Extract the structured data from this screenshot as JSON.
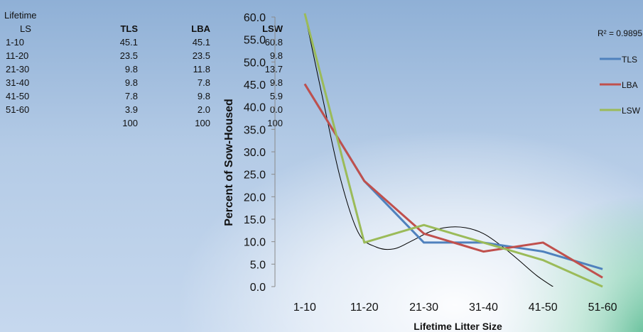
{
  "table": {
    "title": "Lifetime",
    "headers": [
      "LS",
      "TLS",
      "LBA",
      "LSW"
    ],
    "rows": [
      [
        "1-10",
        "45.1",
        "45.1",
        "60.8"
      ],
      [
        "11-20",
        "23.5",
        "23.5",
        "9.8"
      ],
      [
        "21-30",
        "9.8",
        "11.8",
        "13.7"
      ],
      [
        "31-40",
        "9.8",
        "7.8",
        "9.8"
      ],
      [
        "41-50",
        "7.8",
        "9.8",
        "5.9"
      ],
      [
        "51-60",
        "3.9",
        "2.0",
        "0.0"
      ]
    ],
    "totals": [
      "",
      "100",
      "100",
      "100"
    ]
  },
  "chart_data": {
    "type": "line",
    "categories": [
      "1-10",
      "11-20",
      "21-30",
      "31-40",
      "41-50",
      "51-60"
    ],
    "series": [
      {
        "name": "TLS",
        "values": [
          45.1,
          23.5,
          9.8,
          9.8,
          7.8,
          3.9
        ],
        "color": "#4f81bd"
      },
      {
        "name": "LBA",
        "values": [
          45.1,
          23.5,
          11.8,
          7.8,
          9.8,
          2.0
        ],
        "color": "#c0504d"
      },
      {
        "name": "LSW",
        "values": [
          60.8,
          9.8,
          13.7,
          9.8,
          5.9,
          0.0
        ],
        "color": "#9bbb59"
      }
    ],
    "trendline": {
      "type": "polynomial",
      "r2_label": "R² = 0.9895",
      "color": "#000000",
      "points": [
        [
          1,
          60.8
        ],
        [
          1.3,
          42
        ],
        [
          1.6,
          24
        ],
        [
          1.9,
          12
        ],
        [
          2.2,
          8.8
        ],
        [
          2.5,
          8.4
        ],
        [
          2.8,
          10.2
        ],
        [
          3.1,
          12.2
        ],
        [
          3.4,
          13.2
        ],
        [
          3.7,
          13.1
        ],
        [
          4.0,
          11.8
        ],
        [
          4.3,
          9.1
        ],
        [
          4.6,
          5.8
        ],
        [
          4.9,
          2.4
        ],
        [
          5.2,
          -0.3
        ]
      ]
    },
    "title": "",
    "xlabel": "Lifetime Litter Size",
    "ylabel": "Percent of Sow-Housed",
    "ylim": [
      0,
      60
    ],
    "yticks": [
      "0.0",
      "5.0",
      "10.0",
      "15.0",
      "20.0",
      "25.0",
      "30.0",
      "35.0",
      "40.0",
      "45.0",
      "50.0",
      "55.0",
      "60.0"
    ],
    "legend_position": "right"
  }
}
